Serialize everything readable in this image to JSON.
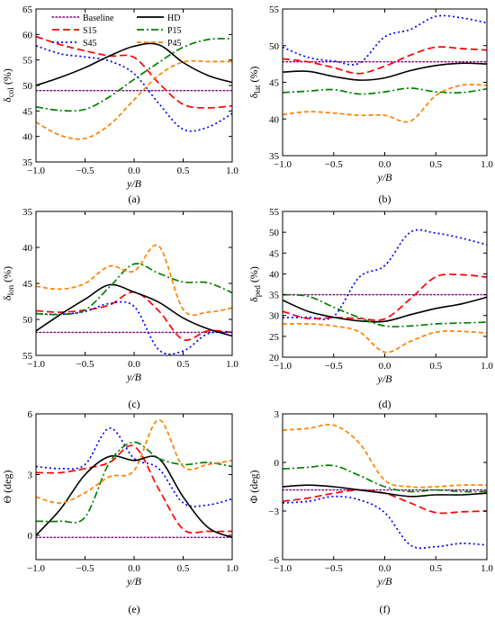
{
  "legend": {
    "entries": [
      {
        "label": "Baseline",
        "color": "#800080",
        "dash": "1.6,2.4"
      },
      {
        "label": "S15",
        "color": "#ff0000",
        "dash": "8,4"
      },
      {
        "label": "S45",
        "color": "#0000ff",
        "dash": "2,3"
      },
      {
        "label": "HD",
        "color": "#000000",
        "dash": ""
      },
      {
        "label": "P15",
        "color": "#008000",
        "dash": "8,3,2,3"
      },
      {
        "label": "P45",
        "color": "#ff8000",
        "dash": "5,3"
      }
    ]
  },
  "chart_data": [
    {
      "type": "line",
      "panel_label": "(a)",
      "ylabel_main": "δ",
      "ylabel_sub": "col",
      "ylabel_unit": " (%)",
      "xlabel": "y/B",
      "xlim": [
        -1.0,
        1.0
      ],
      "ylim": [
        35,
        65
      ],
      "xticks": [
        -1.0,
        -0.5,
        0.0,
        0.5,
        1.0
      ],
      "xticklabels": [
        "−1.0",
        "−0.5",
        "0.0",
        "0.5",
        "1.0"
      ],
      "yticks": [
        35,
        40,
        45,
        50,
        55,
        60,
        65
      ],
      "yticklabels": [
        "35",
        "40",
        "45",
        "50",
        "55",
        "60",
        "65"
      ],
      "x": [
        -1.0,
        -0.75,
        -0.5,
        -0.25,
        0.0,
        0.25,
        0.5,
        0.75,
        1.0
      ],
      "series": [
        {
          "name": "Baseline",
          "y": [
            49,
            49,
            49,
            49,
            49,
            49,
            49,
            49,
            49
          ]
        },
        {
          "name": "S15",
          "y": [
            59.6,
            58,
            56.8,
            55.8,
            55.5,
            50.5,
            46.3,
            45.6,
            46
          ]
        },
        {
          "name": "S45",
          "y": [
            57.8,
            56.2,
            55.6,
            54.8,
            52.3,
            46.5,
            41.4,
            41.8,
            44.5
          ]
        },
        {
          "name": "HD",
          "y": [
            50,
            51.6,
            53.5,
            55.8,
            57.7,
            58,
            54.5,
            52,
            50.6
          ]
        },
        {
          "name": "P15",
          "y": [
            45.8,
            45.1,
            45.3,
            47.8,
            51.2,
            54.5,
            57.5,
            59,
            59.2
          ]
        },
        {
          "name": "P45",
          "y": [
            42.8,
            40.2,
            39.6,
            42.3,
            47.2,
            52,
            54.6,
            54.7,
            54.7
          ]
        }
      ]
    },
    {
      "type": "line",
      "panel_label": "(b)",
      "ylabel_main": "δ",
      "ylabel_sub": "lat",
      "ylabel_unit": " (%)",
      "xlabel": "y/B",
      "xlim": [
        -1.0,
        1.0
      ],
      "ylim": [
        35,
        55
      ],
      "xticks": [
        -1.0,
        -0.5,
        0.0,
        0.5,
        1.0
      ],
      "xticklabels": [
        "−1.0",
        "−0.5",
        "0.0",
        "0.5",
        "1.0"
      ],
      "yticks": [
        35,
        40,
        45,
        50,
        55
      ],
      "yticklabels": [
        "35",
        "40",
        "45",
        "50",
        "55"
      ],
      "x": [
        -1.0,
        -0.75,
        -0.5,
        -0.25,
        0.0,
        0.25,
        0.5,
        0.75,
        1.0
      ],
      "series": [
        {
          "name": "Baseline",
          "y": [
            47.8,
            47.8,
            47.8,
            47.8,
            47.8,
            47.8,
            47.8,
            47.8,
            47.8
          ]
        },
        {
          "name": "S15",
          "y": [
            48.2,
            47.8,
            47,
            46.2,
            47.2,
            48.7,
            49.8,
            49.6,
            49.4
          ]
        },
        {
          "name": "S45",
          "y": [
            49.8,
            48.4,
            47.9,
            47.6,
            51.2,
            52.2,
            54,
            53.8,
            53.1
          ]
        },
        {
          "name": "HD",
          "y": [
            46.4,
            46.5,
            45.8,
            45.3,
            45.6,
            46.6,
            47.3,
            47.6,
            47.5
          ]
        },
        {
          "name": "P15",
          "y": [
            43.6,
            43.8,
            44,
            43.4,
            43.7,
            44.2,
            43.7,
            43.6,
            44.1
          ]
        },
        {
          "name": "P45",
          "y": [
            40.6,
            41,
            40.8,
            40.5,
            40.5,
            39.7,
            43.2,
            44.6,
            44.6
          ]
        }
      ]
    },
    {
      "type": "line",
      "panel_label": "(c)",
      "ylabel_main": "δ",
      "ylabel_sub": "lon",
      "ylabel_unit": " (%)",
      "xlabel": "y/B",
      "xlim": [
        -1.0,
        1.0
      ],
      "ylim": [
        55,
        35
      ],
      "yreversed": true,
      "xticks": [
        -1.0,
        -0.5,
        0.0,
        0.5,
        1.0
      ],
      "xticklabels": [
        "−1.0",
        "−0.5",
        "0.0",
        "0.5",
        "1.0"
      ],
      "yticks": [
        35,
        40,
        45,
        50,
        55
      ],
      "yticklabels": [
        "35",
        "40",
        "45",
        "50",
        "55"
      ],
      "x": [
        -1.0,
        -0.75,
        -0.5,
        -0.25,
        0.0,
        0.25,
        0.5,
        0.75,
        1.0
      ],
      "series": [
        {
          "name": "Baseline",
          "y": [
            51.8,
            51.8,
            51.8,
            51.8,
            51.8,
            51.8,
            51.8,
            51.8,
            51.8
          ]
        },
        {
          "name": "S15",
          "y": [
            48.8,
            49,
            48.7,
            48,
            46.2,
            48.8,
            52.8,
            51.6,
            51.8
          ]
        },
        {
          "name": "S45",
          "y": [
            49.2,
            49.3,
            48.9,
            47.8,
            48.2,
            54.2,
            54.4,
            52,
            51.8
          ]
        },
        {
          "name": "HD",
          "y": [
            51.6,
            49.3,
            47.2,
            45.2,
            46.2,
            47.6,
            49.8,
            51.3,
            52.3
          ]
        },
        {
          "name": "P15",
          "y": [
            49.2,
            49.3,
            48.7,
            45.5,
            42.3,
            43.6,
            44.8,
            44.9,
            46.3
          ]
        },
        {
          "name": "P45",
          "y": [
            45.4,
            45.8,
            45,
            42.6,
            43.3,
            39.8,
            48.6,
            49,
            48.4
          ]
        }
      ]
    },
    {
      "type": "line",
      "panel_label": "(d)",
      "ylabel_main": "δ",
      "ylabel_sub": "ped",
      "ylabel_unit": " (%)",
      "xlabel": "y/B",
      "xlim": [
        -1.0,
        1.0
      ],
      "ylim": [
        20,
        55
      ],
      "xticks": [
        -1.0,
        -0.5,
        0.0,
        0.5,
        1.0
      ],
      "xticklabels": [
        "−1.0",
        "−0.5",
        "0.0",
        "0.5",
        "1.0"
      ],
      "yticks": [
        20,
        25,
        30,
        35,
        40,
        45,
        50,
        55
      ],
      "yticklabels": [
        "20",
        "25",
        "30",
        "35",
        "40",
        "45",
        "50",
        "55"
      ],
      "x": [
        -1.0,
        -0.75,
        -0.5,
        -0.25,
        0.0,
        0.25,
        0.5,
        0.75,
        1.0
      ],
      "series": [
        {
          "name": "Baseline",
          "y": [
            35,
            35,
            35,
            35,
            35,
            35,
            35,
            35,
            35
          ]
        },
        {
          "name": "S15",
          "y": [
            31,
            29.3,
            29.5,
            29.3,
            29.2,
            34,
            39.3,
            39.8,
            39.2
          ]
        },
        {
          "name": "S45",
          "y": [
            29.5,
            29.6,
            29.8,
            39.2,
            42,
            50,
            49.8,
            48.6,
            47
          ]
        },
        {
          "name": "HD",
          "y": [
            33.7,
            31,
            29.6,
            28.7,
            28.6,
            30.2,
            31.7,
            32.8,
            34.4
          ]
        },
        {
          "name": "P15",
          "y": [
            35,
            34.6,
            32,
            29.5,
            27.5,
            27.5,
            28,
            28.2,
            28.4
          ]
        },
        {
          "name": "P45",
          "y": [
            28,
            28,
            27.5,
            26.1,
            21.2,
            23.8,
            26,
            26.2,
            25.8
          ]
        }
      ]
    },
    {
      "type": "line",
      "panel_label": "(e)",
      "ylabel_main": "Θ (deg)",
      "ylabel_sub": "",
      "ylabel_unit": "",
      "xlabel": "y/B",
      "xlim": [
        -1.0,
        1.0
      ],
      "ylim": [
        -1.2,
        6
      ],
      "xticks": [
        -1.0,
        -0.5,
        0.0,
        0.5,
        1.0
      ],
      "xticklabels": [
        "−1.0",
        "−0.5",
        "0.0",
        "0.5",
        "1.0"
      ],
      "yticks": [
        0,
        3,
        6
      ],
      "yticklabels": [
        "0",
        "3",
        "6"
      ],
      "x": [
        -1.0,
        -0.75,
        -0.5,
        -0.25,
        0.0,
        0.25,
        0.5,
        0.75,
        1.0
      ],
      "series": [
        {
          "name": "Baseline",
          "y": [
            -0.1,
            -0.1,
            -0.1,
            -0.1,
            -0.1,
            -0.1,
            -0.1,
            -0.1,
            -0.1
          ]
        },
        {
          "name": "S15",
          "y": [
            3.1,
            3.1,
            3.3,
            3.6,
            4.4,
            2.3,
            0.3,
            0.2,
            0.2
          ]
        },
        {
          "name": "S45",
          "y": [
            3.4,
            3.3,
            3.5,
            5.3,
            3.8,
            3.3,
            1.6,
            1.5,
            1.8
          ]
        },
        {
          "name": "HD",
          "y": [
            0,
            1.3,
            3,
            3.9,
            3.7,
            3.8,
            1.9,
            0.4,
            -0.1
          ]
        },
        {
          "name": "P15",
          "y": [
            0.7,
            0.7,
            0.9,
            3.6,
            4.6,
            3.8,
            3.5,
            3.6,
            3.4
          ]
        },
        {
          "name": "P45",
          "y": [
            1.9,
            1.6,
            2.1,
            2.9,
            3.2,
            5.7,
            3.4,
            3.5,
            3.7
          ]
        }
      ]
    },
    {
      "type": "line",
      "panel_label": "(f)",
      "ylabel_main": "Φ (deg)",
      "ylabel_sub": "",
      "ylabel_unit": "",
      "xlabel": "y/B",
      "xlim": [
        -1.0,
        1.0
      ],
      "ylim": [
        -6,
        3
      ],
      "xticks": [
        -1.0,
        -0.5,
        0.0,
        0.5,
        1.0
      ],
      "xticklabels": [
        "−1.0",
        "−0.5",
        "0.0",
        "0.5",
        "1.0"
      ],
      "yticks": [
        -6,
        -3,
        0,
        3
      ],
      "yticklabels": [
        "−6",
        "−3",
        "0",
        "3"
      ],
      "x": [
        -1.0,
        -0.75,
        -0.5,
        -0.25,
        0.0,
        0.25,
        0.5,
        0.75,
        1.0
      ],
      "series": [
        {
          "name": "Baseline",
          "y": [
            -1.7,
            -1.7,
            -1.7,
            -1.7,
            -1.7,
            -1.7,
            -1.7,
            -1.7,
            -1.7
          ]
        },
        {
          "name": "S15",
          "y": [
            -2.4,
            -2.2,
            -1.9,
            -1.7,
            -1.9,
            -2.5,
            -3.1,
            -3.05,
            -3
          ]
        },
        {
          "name": "S45",
          "y": [
            -2.5,
            -2.4,
            -2.1,
            -2.3,
            -3.1,
            -5.1,
            -5.2,
            -5,
            -5.1
          ]
        },
        {
          "name": "HD",
          "y": [
            -1.5,
            -1.4,
            -1.5,
            -1.7,
            -1.9,
            -2.1,
            -2,
            -2,
            -1.9
          ]
        },
        {
          "name": "P15",
          "y": [
            -0.4,
            -0.3,
            -0.2,
            -0.8,
            -1.5,
            -1.8,
            -1.7,
            -1.8,
            -1.8
          ]
        },
        {
          "name": "P45",
          "y": [
            2.0,
            2.1,
            2.3,
            1.2,
            -1.1,
            -1.5,
            -1.5,
            -1.4,
            -1.4
          ]
        }
      ]
    }
  ]
}
